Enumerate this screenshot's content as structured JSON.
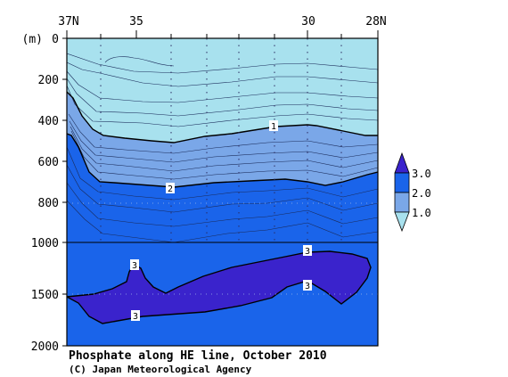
{
  "chart_data": {
    "type": "heatmap",
    "title": "Phosphate along HE line, October 2010",
    "credit": "(C) Japan Meteorological Agency",
    "y_unit": "(m)",
    "x_ticks": [
      "37N",
      "35",
      "30",
      "28N"
    ],
    "x_range_latitude": [
      37,
      28
    ],
    "y_ticks": [
      "0",
      "200",
      "400",
      "600",
      "800",
      "1000",
      "1500",
      "2000"
    ],
    "y_range_depth_m": [
      0,
      2000
    ],
    "contour_labels": [
      "1",
      "2",
      "3",
      "3",
      "3",
      "3"
    ],
    "colorbar_labels": [
      "3.0",
      "2.0",
      "1.0"
    ],
    "colors": {
      "below_1": "#a8e1ee",
      "1_to_2": "#7aa7e8",
      "2_to_3": "#1a64ea",
      "above_3": "#3a23cc"
    },
    "contour_interval_upper": 0.1,
    "contour_interval_lower": 0.5,
    "station_latitudes": [
      36.0,
      34.0,
      32.8,
      31.9,
      31.0,
      30.0,
      29.4,
      28.9
    ]
  }
}
